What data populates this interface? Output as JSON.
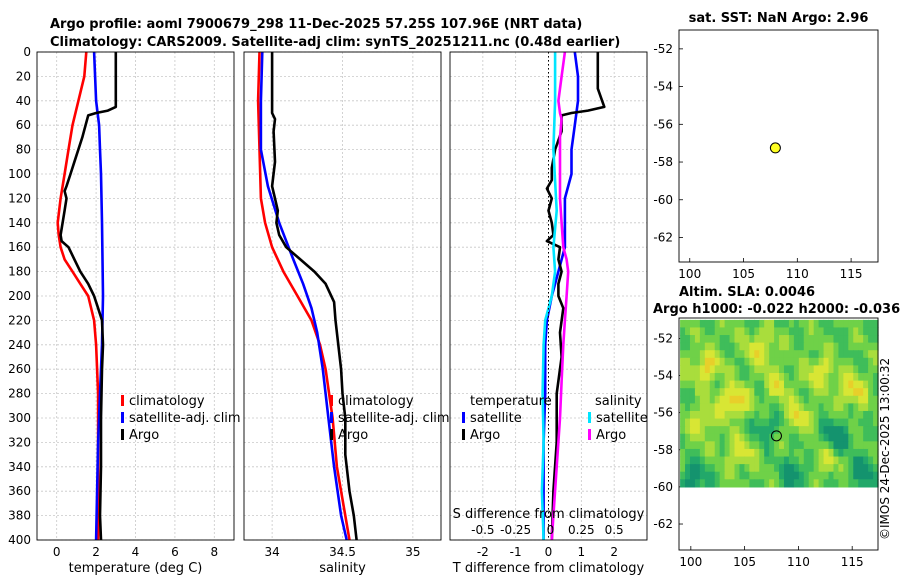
{
  "figure_title": {
    "line1": "Argo profile: aoml 7900679_298 11-Dec-2025 57.25S 107.96E (NRT data)",
    "line2": "Climatology: CARS2009. Satellite-adj clim: synTS_20251211.nc (0.48d earlier)"
  },
  "side_label": "©IMOS 24-Dec-2025 13:00:32",
  "colors": {
    "climatology": "#ff0000",
    "satellite": "#0000ff",
    "argo": "#000000",
    "sal_satellite": "#00e5ff",
    "sal_argo": "#ff00ff",
    "marker": "#ffff22"
  },
  "chart_data": [
    {
      "id": "temperature",
      "type": "line",
      "xlabel": "temperature (deg C)",
      "ylabel": "",
      "xlim": [
        -1,
        9
      ],
      "ylim": [
        400,
        0
      ],
      "xticks": [
        0,
        2,
        4,
        6,
        8
      ],
      "yticks": [
        0,
        20,
        40,
        60,
        80,
        100,
        120,
        140,
        160,
        180,
        200,
        220,
        240,
        260,
        280,
        300,
        320,
        340,
        360,
        380,
        400
      ],
      "legend": [
        "climatology",
        "satellite-adj. clim",
        "Argo"
      ],
      "series": [
        {
          "name": "climatology",
          "color": "#ff0000",
          "points": [
            [
              1.5,
              0
            ],
            [
              1.4,
              20
            ],
            [
              1.1,
              40
            ],
            [
              0.8,
              60
            ],
            [
              0.6,
              80
            ],
            [
              0.4,
              100
            ],
            [
              0.2,
              120
            ],
            [
              0.05,
              140
            ],
            [
              0.1,
              150
            ],
            [
              0.2,
              160
            ],
            [
              0.4,
              170
            ],
            [
              0.8,
              180
            ],
            [
              1.2,
              190
            ],
            [
              1.6,
              200
            ],
            [
              1.9,
              220
            ],
            [
              2.0,
              240
            ],
            [
              2.05,
              260
            ],
            [
              2.1,
              280
            ],
            [
              2.1,
              300
            ],
            [
              2.1,
              340
            ],
            [
              2.1,
              400
            ]
          ]
        },
        {
          "name": "satellite-adj. clim",
          "color": "#0000ff",
          "points": [
            [
              1.9,
              0
            ],
            [
              1.95,
              20
            ],
            [
              2.0,
              40
            ],
            [
              2.15,
              60
            ],
            [
              2.2,
              80
            ],
            [
              2.25,
              100
            ],
            [
              2.3,
              140
            ],
            [
              2.35,
              200
            ],
            [
              2.3,
              240
            ],
            [
              2.2,
              280
            ],
            [
              2.1,
              320
            ],
            [
              2.05,
              360
            ],
            [
              2.0,
              400
            ]
          ]
        },
        {
          "name": "Argo",
          "color": "#000000",
          "points": [
            [
              3.0,
              0
            ],
            [
              3.0,
              45
            ],
            [
              2.6,
              48
            ],
            [
              2.0,
              50
            ],
            [
              1.6,
              52
            ],
            [
              1.3,
              70
            ],
            [
              0.9,
              90
            ],
            [
              0.7,
              100
            ],
            [
              0.5,
              110
            ],
            [
              0.4,
              114
            ],
            [
              0.5,
              120
            ],
            [
              0.4,
              130
            ],
            [
              0.3,
              140
            ],
            [
              0.2,
              150
            ],
            [
              0.25,
              155
            ],
            [
              0.6,
              160
            ],
            [
              0.9,
              170
            ],
            [
              1.2,
              180
            ],
            [
              1.6,
              190
            ],
            [
              1.9,
              200
            ],
            [
              2.1,
              210
            ],
            [
              2.3,
              220
            ],
            [
              2.35,
              240
            ],
            [
              2.3,
              260
            ],
            [
              2.25,
              300
            ],
            [
              2.25,
              340
            ],
            [
              2.2,
              380
            ],
            [
              2.25,
              400
            ]
          ]
        }
      ]
    },
    {
      "id": "salinity",
      "type": "line",
      "xlabel": "salinity",
      "ylabel": "",
      "xlim": [
        33.8,
        35.2
      ],
      "ylim": [
        400,
        0
      ],
      "xticks": [
        34,
        34.5,
        35
      ],
      "legend": [
        "climatology",
        "satellite-adj. clim",
        "Argo"
      ],
      "series": [
        {
          "name": "climatology",
          "color": "#ff0000",
          "points": [
            [
              33.91,
              0
            ],
            [
              33.9,
              40
            ],
            [
              33.91,
              80
            ],
            [
              33.92,
              120
            ],
            [
              33.95,
              140
            ],
            [
              34.0,
              160
            ],
            [
              34.08,
              180
            ],
            [
              34.18,
              200
            ],
            [
              34.28,
              220
            ],
            [
              34.34,
              240
            ],
            [
              34.38,
              260
            ],
            [
              34.43,
              300
            ],
            [
              34.46,
              340
            ],
            [
              34.52,
              380
            ],
            [
              34.55,
              400
            ]
          ]
        },
        {
          "name": "satellite-adj. clim",
          "color": "#0000ff",
          "points": [
            [
              33.93,
              0
            ],
            [
              33.92,
              40
            ],
            [
              33.92,
              80
            ],
            [
              33.97,
              110
            ],
            [
              34.05,
              140
            ],
            [
              34.15,
              170
            ],
            [
              34.22,
              190
            ],
            [
              34.28,
              210
            ],
            [
              34.32,
              230
            ],
            [
              34.36,
              260
            ],
            [
              34.4,
              300
            ],
            [
              34.44,
              340
            ],
            [
              34.49,
              380
            ],
            [
              34.53,
              400
            ]
          ]
        },
        {
          "name": "Argo",
          "color": "#000000",
          "points": [
            [
              34.0,
              0
            ],
            [
              34.0,
              50
            ],
            [
              34.02,
              55
            ],
            [
              34.01,
              65
            ],
            [
              34.02,
              90
            ],
            [
              34.0,
              110
            ],
            [
              34.02,
              120
            ],
            [
              34.04,
              130
            ],
            [
              34.03,
              140
            ],
            [
              34.05,
              150
            ],
            [
              34.1,
              160
            ],
            [
              34.2,
              170
            ],
            [
              34.3,
              180
            ],
            [
              34.38,
              190
            ],
            [
              34.44,
              205
            ],
            [
              34.45,
              220
            ],
            [
              34.47,
              240
            ],
            [
              34.49,
              260
            ],
            [
              34.5,
              280
            ],
            [
              34.52,
              300
            ],
            [
              34.52,
              330
            ],
            [
              34.55,
              360
            ],
            [
              34.58,
              380
            ],
            [
              34.6,
              400
            ]
          ]
        }
      ]
    },
    {
      "id": "difference",
      "type": "line",
      "xlabel": "T difference from climatology",
      "top_label": "S difference from climatology",
      "xlim": [
        -3,
        3
      ],
      "ylim": [
        400,
        0
      ],
      "xticks": [
        -2,
        -1,
        0,
        1,
        2
      ],
      "s_ticks": [
        "-0.5",
        "-0.25",
        "0",
        "0.25",
        "0.5"
      ],
      "s_tick_values": [
        -2,
        -1,
        0,
        1,
        2
      ],
      "legend_temperature_title": "temperature",
      "legend_salinity_title": "salinity",
      "legend": [
        "satellite",
        "Argo",
        "satellite",
        "Argo"
      ],
      "series": [
        {
          "name": "T satellite",
          "color": "#0000ff",
          "points": [
            [
              0.8,
              0
            ],
            [
              0.9,
              20
            ],
            [
              0.9,
              40
            ],
            [
              0.8,
              60
            ],
            [
              0.7,
              80
            ],
            [
              0.7,
              100
            ],
            [
              0.5,
              120
            ],
            [
              0.5,
              140
            ],
            [
              0.5,
              160
            ],
            [
              0.3,
              180
            ],
            [
              0.1,
              200
            ],
            [
              -0.05,
              220
            ],
            [
              -0.1,
              240
            ],
            [
              -0.1,
              280
            ],
            [
              -0.15,
              320
            ],
            [
              -0.15,
              360
            ],
            [
              -0.15,
              400
            ]
          ]
        },
        {
          "name": "T Argo",
          "color": "#000000",
          "points": [
            [
              1.5,
              0
            ],
            [
              1.5,
              30
            ],
            [
              1.7,
              45
            ],
            [
              1.2,
              48
            ],
            [
              0.7,
              50
            ],
            [
              0.4,
              52
            ],
            [
              0.4,
              65
            ],
            [
              0.2,
              80
            ],
            [
              0.1,
              95
            ],
            [
              0.1,
              105
            ],
            [
              -0.05,
              112
            ],
            [
              0.1,
              120
            ],
            [
              0.0,
              130
            ],
            [
              0.1,
              140
            ],
            [
              0.15,
              150
            ],
            [
              -0.05,
              155
            ],
            [
              0.35,
              160
            ],
            [
              0.3,
              170
            ],
            [
              0.4,
              180
            ],
            [
              0.3,
              190
            ],
            [
              0.3,
              200
            ],
            [
              0.45,
              210
            ],
            [
              0.35,
              230
            ],
            [
              0.4,
              250
            ],
            [
              0.25,
              280
            ],
            [
              0.25,
              320
            ],
            [
              0.15,
              360
            ],
            [
              0.1,
              400
            ]
          ]
        },
        {
          "name": "S satellite",
          "color": "#00e5ff",
          "points": [
            [
              0.2,
              0
            ],
            [
              0.2,
              40
            ],
            [
              0.15,
              80
            ],
            [
              0.25,
              130
            ],
            [
              0.15,
              160
            ],
            [
              0.2,
              180
            ],
            [
              0.1,
              200
            ],
            [
              -0.1,
              220
            ],
            [
              -0.15,
              240
            ],
            [
              -0.18,
              280
            ],
            [
              -0.15,
              320
            ],
            [
              -0.2,
              360
            ],
            [
              -0.15,
              400
            ]
          ]
        },
        {
          "name": "S Argo",
          "color": "#ff00ff",
          "points": [
            [
              0.5,
              0
            ],
            [
              0.4,
              20
            ],
            [
              0.3,
              40
            ],
            [
              0.35,
              50
            ],
            [
              0.4,
              55
            ],
            [
              0.35,
              70
            ],
            [
              0.35,
              120
            ],
            [
              0.4,
              140
            ],
            [
              0.45,
              160
            ],
            [
              0.55,
              170
            ],
            [
              0.6,
              180
            ],
            [
              0.55,
              200
            ],
            [
              0.5,
              220
            ],
            [
              0.45,
              240
            ],
            [
              0.4,
              270
            ],
            [
              0.35,
              300
            ],
            [
              0.25,
              340
            ],
            [
              0.15,
              380
            ],
            [
              0.1,
              400
            ]
          ]
        }
      ]
    },
    {
      "id": "sst_map",
      "type": "scatter",
      "title": "sat. SST: NaN Argo: 2.96",
      "xlim": [
        99,
        117.5
      ],
      "ylim": [
        -63.3,
        -51
      ],
      "xticks": [
        100,
        105,
        110,
        115
      ],
      "yticks": [
        -52,
        -54,
        -56,
        -58,
        -60,
        -62
      ],
      "marker": {
        "lon": 107.96,
        "lat": -57.25
      }
    },
    {
      "id": "sla_map",
      "type": "heatmap",
      "title_line1": "Altim. SLA: 0.0046",
      "title_line2": "Argo h1000: -0.022 h2000: -0.036",
      "xlim": [
        98.9,
        117.4
      ],
      "ylim": [
        -63.4,
        -50.9
      ],
      "xticks": [
        100,
        105,
        110,
        115
      ],
      "yticks": [
        -52,
        -54,
        -56,
        -58,
        -60,
        -62
      ],
      "data_extent": {
        "lon": [
          99,
          117.4
        ],
        "lat": [
          -60,
          -51
        ]
      },
      "marker": {
        "lon": 107.96,
        "lat": -57.25
      },
      "hot_spots": [
        {
          "lon": 104,
          "lat": -55.4,
          "v": 1.0
        },
        {
          "lon": 101.5,
          "lat": -53.5,
          "v": 0.8
        },
        {
          "lon": 106.5,
          "lat": -52.5,
          "v": 0.7
        },
        {
          "lon": 112,
          "lat": -53.8,
          "v": 0.7
        },
        {
          "lon": 115,
          "lat": -54.8,
          "v": 0.75
        },
        {
          "lon": 101,
          "lat": -56.5,
          "v": 0.6
        },
        {
          "lon": 110,
          "lat": -56.2,
          "v": 0.65
        },
        {
          "lon": 104.5,
          "lat": -58.2,
          "v": 0.6
        },
        {
          "lon": 112.5,
          "lat": -58.5,
          "v": 0.55
        },
        {
          "lon": 108,
          "lat": -54.5,
          "v": 0.5
        }
      ],
      "cold_spots": [
        {
          "lon": 113.5,
          "lat": -57.3,
          "v": 1.0
        },
        {
          "lon": 100.2,
          "lat": -59.5,
          "v": 0.8
        },
        {
          "lon": 109.5,
          "lat": -59.3,
          "v": 0.7
        },
        {
          "lon": 116,
          "lat": -59.2,
          "v": 0.8
        },
        {
          "lon": 107,
          "lat": -56.8,
          "v": 0.5
        }
      ]
    }
  ]
}
